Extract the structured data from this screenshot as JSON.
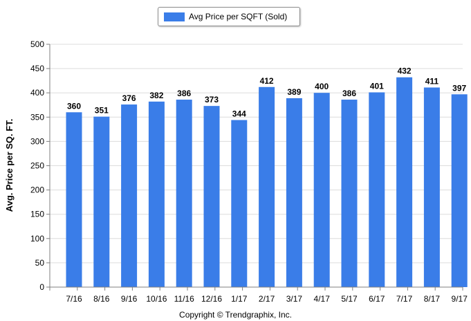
{
  "chart_data": {
    "type": "bar",
    "categories": [
      "7/16",
      "8/16",
      "9/16",
      "10/16",
      "11/16",
      "12/16",
      "1/17",
      "2/17",
      "3/17",
      "4/17",
      "5/17",
      "6/17",
      "7/17",
      "8/17",
      "9/17"
    ],
    "series": [
      {
        "name": "Avg Price per SQFT (Sold)",
        "values": [
          360,
          351,
          376,
          382,
          386,
          373,
          344,
          412,
          389,
          400,
          386,
          401,
          432,
          411,
          397
        ],
        "color": "#3a7de8"
      }
    ],
    "data_labels": [
      "360",
      "351",
      "376",
      "382",
      "386",
      "373",
      "344",
      "412",
      "389",
      "400",
      "386",
      "401",
      "432",
      "411",
      "397"
    ],
    "ylabel": "Avg. Price per SQ. FT.",
    "xlabel": "",
    "ylim": [
      0,
      500
    ],
    "yticks": [
      0,
      50,
      100,
      150,
      200,
      250,
      300,
      350,
      400,
      450,
      500
    ],
    "grid": true,
    "legend_placement": "top-center"
  },
  "footer": {
    "copyright": "Copyright © Trendgraphix, Inc."
  },
  "colors": {
    "bar": "#3a7de8",
    "grid": "#dcdcdc",
    "axis": "#7f7f7f"
  }
}
